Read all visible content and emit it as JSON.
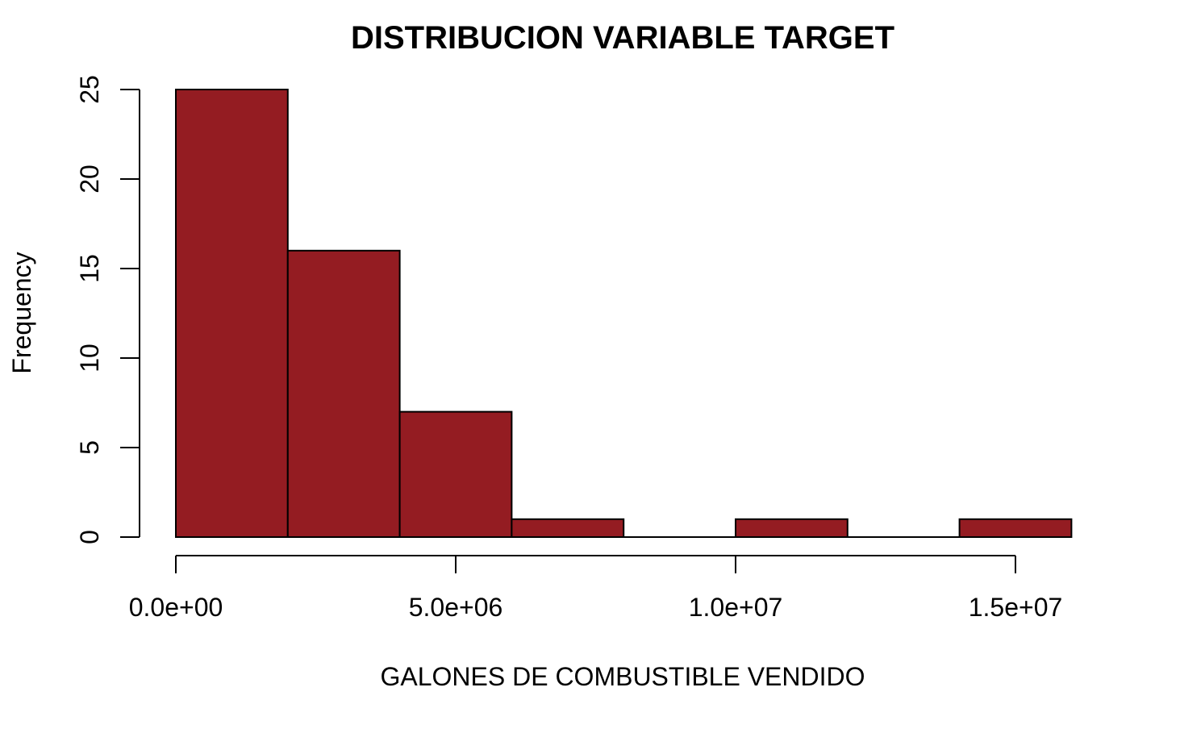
{
  "chart_data": {
    "type": "bar",
    "subtype": "histogram",
    "title": "DISTRIBUCION VARIABLE TARGET",
    "xlabel": "GALONES DE COMBUSTIBLE VENDIDO",
    "ylabel": "Frequency",
    "bins": [
      {
        "x0": 0,
        "x1": 2000000,
        "count": 25
      },
      {
        "x0": 2000000,
        "x1": 4000000,
        "count": 16
      },
      {
        "x0": 4000000,
        "x1": 6000000,
        "count": 7
      },
      {
        "x0": 6000000,
        "x1": 8000000,
        "count": 1
      },
      {
        "x0": 8000000,
        "x1": 10000000,
        "count": 0
      },
      {
        "x0": 10000000,
        "x1": 12000000,
        "count": 1
      },
      {
        "x0": 12000000,
        "x1": 14000000,
        "count": 0
      },
      {
        "x0": 14000000,
        "x1": 16000000,
        "count": 1
      }
    ],
    "xlim": [
      0,
      16000000
    ],
    "ylim": [
      0,
      25
    ],
    "x_ticks": [
      {
        "value": 0,
        "label": "0.0e+00"
      },
      {
        "value": 5000000,
        "label": "5.0e+06"
      },
      {
        "value": 10000000,
        "label": "1.0e+07"
      },
      {
        "value": 15000000,
        "label": "1.5e+07"
      }
    ],
    "y_ticks": [
      {
        "value": 0,
        "label": "0"
      },
      {
        "value": 5,
        "label": "5"
      },
      {
        "value": 10,
        "label": "10"
      },
      {
        "value": 15,
        "label": "15"
      },
      {
        "value": 20,
        "label": "20"
      },
      {
        "value": 25,
        "label": "25"
      }
    ],
    "grid": false,
    "legend": "none",
    "bar_color": "#941c22",
    "edge_color": "#000000"
  }
}
